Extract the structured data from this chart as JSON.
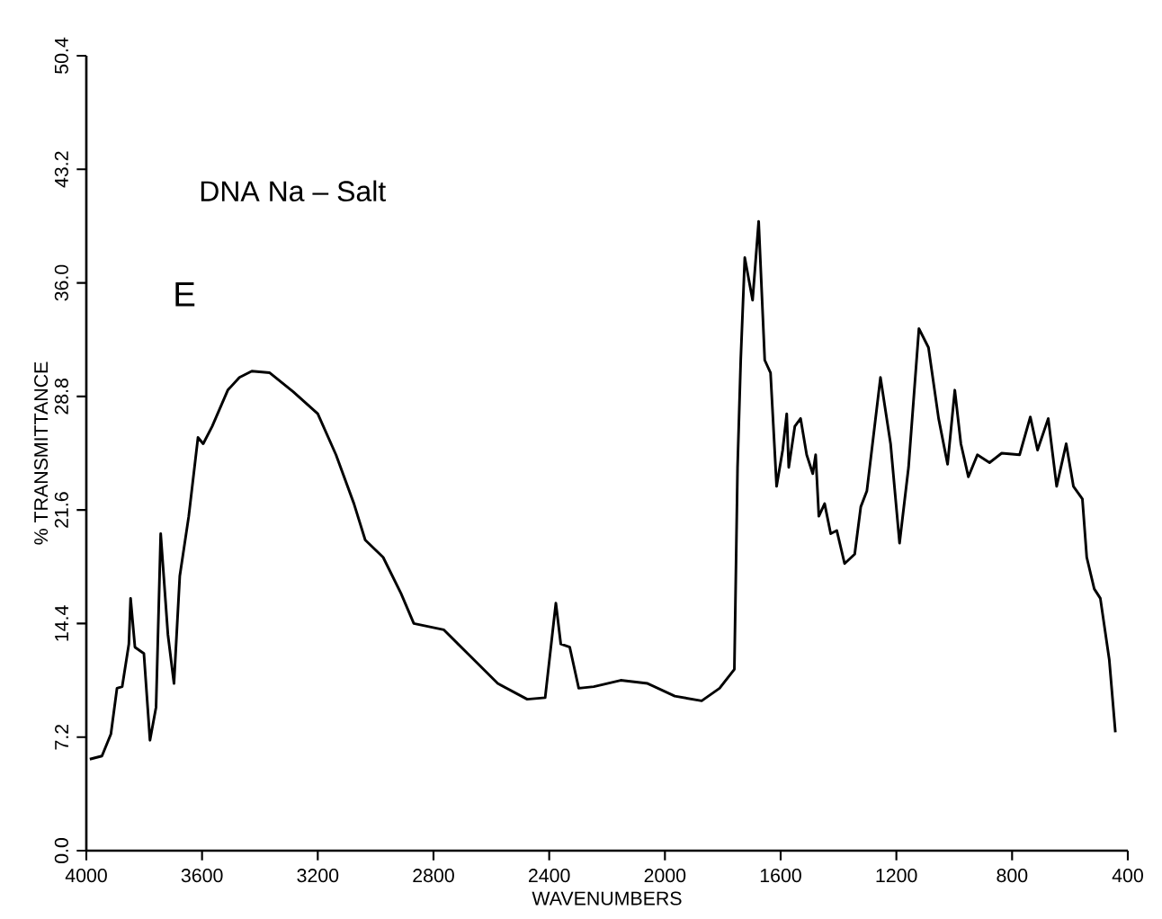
{
  "chart_data": {
    "type": "line",
    "title": "DNA Na – Salt",
    "annotations": [
      "E"
    ],
    "xlabel": "WAVENUMBERS",
    "ylabel": "% TRANSMITTANCE",
    "xlim": [
      4000,
      400
    ],
    "ylim": [
      0,
      50.4
    ],
    "xticks": [
      4000,
      3600,
      3200,
      2800,
      2400,
      2000,
      1600,
      1200,
      800,
      400
    ],
    "yticks": [
      {
        "value": 0,
        "label": "0.0"
      },
      7.2,
      14.4,
      21.6,
      28.8,
      {
        "value": 36,
        "label": "36.0"
      },
      43.2,
      50.4
    ],
    "grid": false,
    "marker": "none",
    "line_style": "solid",
    "series": [
      {
        "color": "#000000",
        "x": [
          3988,
          3946,
          3915,
          3894,
          3876,
          3853,
          3847,
          3832,
          3801,
          3780,
          3759,
          3743,
          3718,
          3697,
          3677,
          3646,
          3614,
          3596,
          3565,
          3511,
          3471,
          3428,
          3366,
          3285,
          3200,
          3137,
          3075,
          3036,
          2974,
          2912,
          2868,
          2764,
          2682,
          2578,
          2476,
          2414,
          2377,
          2360,
          2329,
          2298,
          2246,
          2153,
          2060,
          1966,
          1873,
          1811,
          1760,
          1749,
          1738,
          1724,
          1697,
          1676,
          1655,
          1635,
          1614,
          1593,
          1579,
          1572,
          1551,
          1531,
          1510,
          1489,
          1479,
          1468,
          1448,
          1427,
          1406,
          1379,
          1344,
          1323,
          1302,
          1255,
          1220,
          1189,
          1158,
          1122,
          1089,
          1054,
          1023,
          998,
          977,
          951,
          920,
          878,
          836,
          774,
          737,
          712,
          675,
          646,
          613,
          588,
          557,
          542,
          516,
          495,
          464,
          443
        ],
        "values": [
          5.8,
          6.0,
          7.4,
          10.3,
          10.4,
          13.1,
          16.0,
          12.9,
          12.5,
          7.0,
          9.1,
          20.1,
          13.7,
          10.6,
          17.4,
          21.2,
          26.2,
          25.8,
          26.9,
          29.2,
          30.0,
          30.4,
          30.3,
          29.1,
          27.7,
          25.1,
          22.0,
          19.7,
          18.6,
          16.3,
          14.4,
          14.0,
          12.5,
          10.6,
          9.6,
          9.7,
          15.7,
          13.1,
          12.9,
          10.3,
          10.4,
          10.8,
          10.6,
          9.8,
          9.5,
          10.3,
          11.5,
          24.3,
          31.1,
          37.6,
          34.9,
          39.9,
          31.1,
          30.3,
          23.1,
          25.4,
          27.7,
          24.3,
          26.9,
          27.4,
          25.1,
          23.9,
          25.1,
          21.2,
          22.0,
          20.1,
          20.3,
          18.2,
          18.8,
          21.8,
          22.8,
          30.0,
          25.8,
          19.5,
          24.3,
          33.1,
          31.9,
          27.4,
          24.5,
          29.2,
          25.8,
          23.7,
          25.1,
          24.6,
          25.2,
          25.1,
          27.5,
          25.4,
          27.4,
          23.1,
          25.8,
          23.1,
          22.3,
          18.6,
          16.6,
          16.0,
          12.1,
          7.5
        ]
      }
    ]
  }
}
